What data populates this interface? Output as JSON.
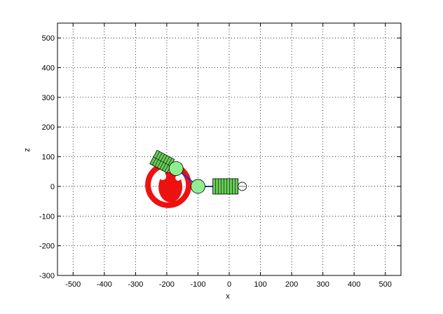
{
  "figure": {
    "xlabel": "x",
    "ylabel": "z"
  },
  "axes": {
    "xlim": [
      -550,
      550
    ],
    "ylim": [
      -300,
      550
    ],
    "xticks": [
      -500,
      -400,
      -300,
      -200,
      -100,
      0,
      100,
      200,
      300,
      400,
      500
    ],
    "yticks": [
      -300,
      -200,
      -100,
      0,
      100,
      200,
      300,
      400,
      500
    ],
    "grid": true,
    "grid_style": "dotted"
  },
  "robot": {
    "link_color": "#2030c0",
    "joint_color": "#90ee90",
    "motor_color": "#66cc55",
    "wheel_color": "#ee1111",
    "joints": [
      {
        "x": -170,
        "z": 60
      },
      {
        "x": -100,
        "z": 0
      }
    ],
    "wheel_center": {
      "x": -195,
      "z": 5
    },
    "end_effector": {
      "x": 5,
      "z": 0
    }
  }
}
